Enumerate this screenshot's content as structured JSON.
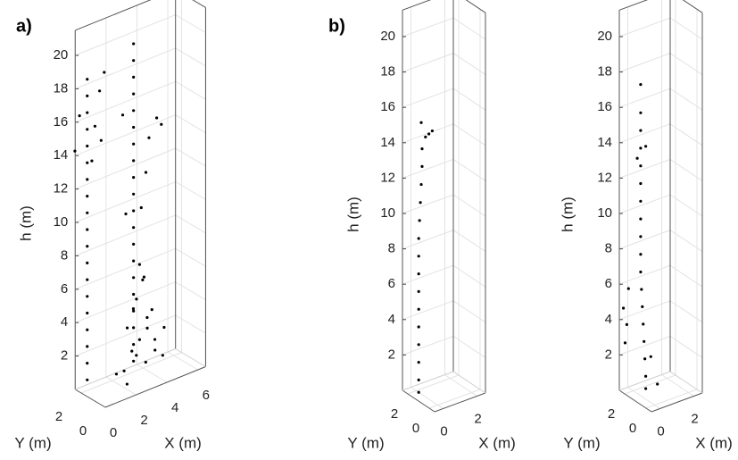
{
  "chart_data": [
    {
      "type": "scatter3d",
      "title": "a)",
      "xlabel": "X (m)",
      "ylabel": "Y (m)",
      "zlabel": "h (m)",
      "xlim": [
        0,
        6.5
      ],
      "ylim": [
        0,
        2.5
      ],
      "zlim": [
        0,
        21.5
      ],
      "xticks": [
        0,
        2,
        4,
        6
      ],
      "yticks": [
        0,
        2
      ],
      "zticks": [
        2,
        4,
        6,
        8,
        10,
        12,
        14,
        16,
        18,
        20
      ],
      "series": [
        {
          "color": "#000000",
          "x": [
            0,
            0,
            0,
            0,
            0,
            0,
            0,
            0,
            0,
            0,
            0,
            0,
            0,
            0,
            0,
            0,
            0,
            0,
            0,
            -0.8,
            0.9,
            -0.5,
            0.8,
            1.1,
            0.5,
            0.3
          ],
          "y": [
            1.5,
            1.5,
            1.5,
            1.5,
            1.5,
            1.5,
            1.5,
            1.5,
            1.5,
            1.5,
            1.5,
            1.5,
            1.5,
            1.5,
            1.5,
            1.5,
            1.5,
            1.5,
            1.5,
            1.5,
            1.5,
            1.5,
            1.5,
            1.5,
            1.5,
            1.5
          ],
          "h": [
            1,
            2,
            3,
            4,
            5,
            6,
            7,
            8,
            9,
            10,
            11,
            12,
            13,
            14,
            15,
            16,
            17,
            18,
            19,
            15,
            15,
            17,
            18,
            19,
            16,
            14
          ]
        },
        {
          "color": "#000000",
          "x": [
            3,
            3,
            3,
            3,
            3,
            3,
            3,
            3,
            3,
            3,
            3,
            3,
            3,
            3,
            3,
            3,
            3,
            3,
            3,
            3,
            4,
            4.5,
            2.3,
            3.8,
            2.5,
            3.5,
            4.8
          ],
          "y": [
            1.5,
            1.5,
            1.5,
            1.5,
            1.5,
            1.5,
            1.5,
            1.5,
            1.5,
            1.5,
            1.5,
            1.5,
            1.5,
            1.5,
            1.5,
            1.5,
            1.5,
            1.5,
            1.5,
            1.5,
            1.5,
            1.5,
            1.5,
            1.5,
            1.5,
            1.5,
            1.5
          ],
          "h": [
            1,
            2,
            3,
            4,
            5,
            6,
            7,
            8,
            9,
            10,
            11,
            12,
            13,
            14,
            15,
            16,
            17,
            18,
            19,
            20,
            14,
            15,
            16,
            12,
            10,
            10,
            14.5
          ]
        },
        {
          "color": "#000000",
          "x": [
            2,
            2.5,
            3.5,
            4,
            2.8,
            3.2,
            3,
            2.2,
            3.8,
            4.5,
            1.5,
            3,
            2.6,
            3.4,
            2.4,
            3.6,
            4.2,
            1.8,
            3.1,
            2.9
          ],
          "y": [
            1,
            1,
            1,
            1,
            1,
            1,
            1,
            1,
            1,
            1,
            1,
            1,
            1,
            1,
            0.5,
            0.5,
            0.5,
            0.5,
            0.5,
            0.5
          ],
          "h": [
            1,
            2,
            3,
            1.5,
            5,
            6,
            7,
            3.5,
            4,
            1,
            1,
            2.5,
            4.5,
            1,
            2,
            2.5,
            3,
            0.5,
            4,
            6.5
          ]
        }
      ]
    },
    {
      "type": "scatter3d",
      "title": "b)",
      "xlabel": "X (m)",
      "ylabel": "Y (m)",
      "zlabel": "h (m)",
      "xlim": [
        -0.5,
        2.5
      ],
      "ylim": [
        -0.5,
        2.5
      ],
      "zlim": [
        0,
        21.5
      ],
      "xticks": [
        0,
        2
      ],
      "yticks": [
        0,
        2
      ],
      "zticks": [
        2,
        4,
        6,
        8,
        10,
        12,
        14,
        16,
        18,
        20
      ],
      "series": [
        {
          "color": "#000000",
          "x": [
            -0.3,
            -0.3,
            -0.3,
            -0.3,
            -0.3,
            -0.3,
            -0.3,
            -0.3,
            -0.3,
            -0.3,
            -0.25,
            -0.2,
            -0.15,
            -0.1,
            -0.1,
            0.1,
            0.3,
            0.5,
            -0.15
          ],
          "y": [
            1.3,
            1.3,
            1.3,
            1.3,
            1.3,
            1.3,
            1.3,
            1.3,
            1.3,
            1.3,
            1.3,
            1.3,
            1.3,
            1.3,
            1.3,
            1.3,
            1.3,
            1.3,
            1.3
          ],
          "h": [
            0.3,
            1,
            2,
            3,
            4,
            5,
            6,
            7,
            8,
            9,
            10,
            11,
            12,
            13,
            14,
            14.6,
            14.7,
            14.8,
            15.5
          ]
        }
      ]
    },
    {
      "type": "scatter3d",
      "xlabel": "X (m)",
      "ylabel": "Y (m)",
      "zlabel": "h (m)",
      "xlim": [
        -0.5,
        2.5
      ],
      "ylim": [
        -0.5,
        2.5
      ],
      "zlim": [
        0,
        21.5
      ],
      "xticks": [
        0,
        2
      ],
      "yticks": [
        0,
        2
      ],
      "zticks": [
        2,
        4,
        6,
        8,
        10,
        12,
        14,
        16,
        18,
        20
      ],
      "series": [
        {
          "color": "#000000",
          "x": [
            0.3,
            0.3,
            0.25,
            0.2,
            0.15,
            0.1,
            0.05,
            0,
            0,
            0,
            0,
            0,
            0,
            0,
            0,
            0,
            0,
            0,
            -0.6,
            -0.5,
            -0.7,
            -0.4,
            0.6,
            0.8,
            0.3,
            -0.2
          ],
          "y": [
            1.3,
            1.3,
            1.3,
            1.3,
            1.3,
            1.3,
            1.3,
            1.3,
            1.3,
            1.3,
            1.3,
            1.3,
            1.3,
            1.3,
            1.3,
            1.3,
            1.3,
            1.3,
            1.8,
            1.8,
            1.8,
            1.8,
            1.3,
            1.0,
            1.3,
            1.3
          ],
          "h": [
            0.3,
            1,
            2,
            3,
            4,
            5,
            6,
            7,
            8,
            9,
            10,
            11,
            12,
            13,
            14,
            15,
            16,
            17.6,
            3,
            4,
            5,
            6,
            2,
            0.5,
            14,
            13.5
          ]
        }
      ]
    }
  ]
}
